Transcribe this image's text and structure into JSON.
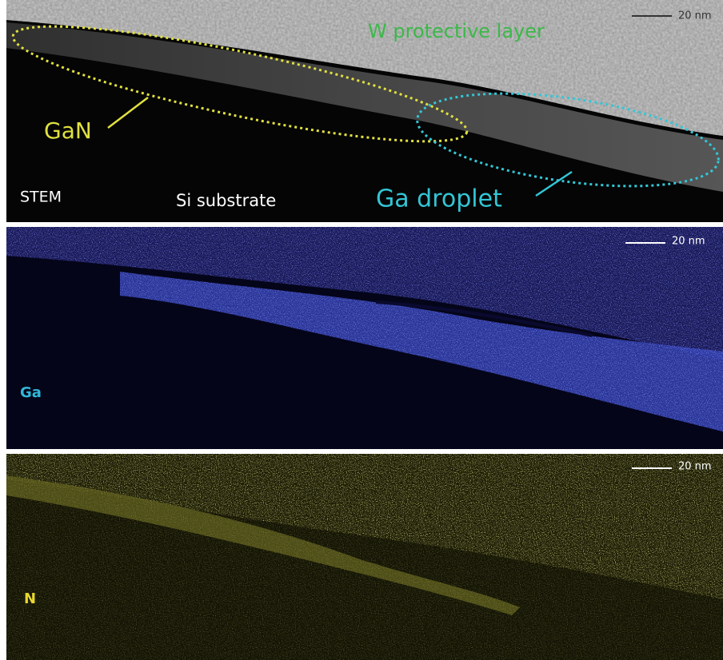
{
  "panels": [
    {
      "scale_bar": "20 nm",
      "labels": [
        "W protective layer",
        "GaN",
        "STEM",
        "Si substrate",
        "Ga droplet"
      ]
    },
    {
      "scale_bar": "20 nm",
      "labels": [
        "Ga"
      ]
    },
    {
      "scale_bar": "20 nm",
      "labels": [
        "N"
      ]
    }
  ]
}
